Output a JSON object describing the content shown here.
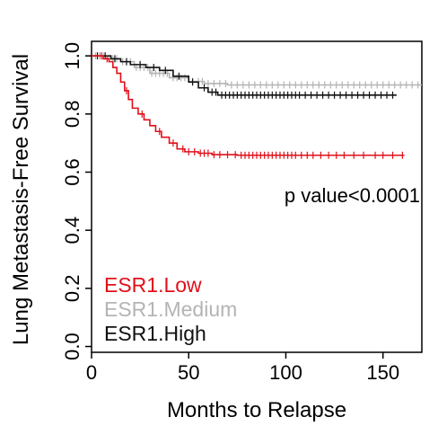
{
  "chart_data": {
    "type": "line",
    "subtype": "kaplan-meier",
    "xlabel": "Months to Relapse",
    "ylabel": "Lung Metastasis-Free Survival",
    "xlim": [
      0,
      170
    ],
    "ylim": [
      -0.02,
      1.05
    ],
    "xticks": [
      0,
      50,
      100,
      150
    ],
    "yticks": [
      0.0,
      0.2,
      0.4,
      0.6,
      0.8,
      1.0
    ],
    "xtick_labels": [
      "0",
      "50",
      "100",
      "150"
    ],
    "ytick_labels": [
      "0.0",
      "0.2",
      "0.4",
      "0.6",
      "0.8",
      "1.0"
    ],
    "grid": false,
    "annotation": "p value<0.0001",
    "legend_position": "bottom-left",
    "series": [
      {
        "name": "ESR1.Low",
        "color": "#e0101a",
        "steps": [
          [
            0,
            1.0
          ],
          [
            6,
            0.99
          ],
          [
            9,
            0.98
          ],
          [
            11,
            0.96
          ],
          [
            13,
            0.94
          ],
          [
            15,
            0.91
          ],
          [
            17,
            0.88
          ],
          [
            19,
            0.85
          ],
          [
            21,
            0.82
          ],
          [
            24,
            0.8
          ],
          [
            27,
            0.78
          ],
          [
            30,
            0.76
          ],
          [
            33,
            0.74
          ],
          [
            36,
            0.72
          ],
          [
            40,
            0.7
          ],
          [
            44,
            0.68
          ],
          [
            48,
            0.67
          ],
          [
            55,
            0.665
          ],
          [
            62,
            0.66
          ],
          [
            75,
            0.658
          ],
          [
            161,
            0.658
          ]
        ],
        "censor_x": [
          5,
          8,
          18,
          26,
          35,
          42,
          47,
          50,
          53,
          56,
          58,
          60,
          63,
          66,
          70,
          74,
          77,
          79,
          81,
          83,
          85,
          87,
          89,
          91,
          93,
          95,
          97,
          99,
          101,
          103,
          105,
          108,
          111,
          114,
          118,
          122,
          126,
          130,
          135,
          140,
          146,
          150,
          155,
          160
        ]
      },
      {
        "name": "ESR1.Medium",
        "color": "#b4b4b4",
        "steps": [
          [
            0,
            1.0
          ],
          [
            8,
            0.99
          ],
          [
            15,
            0.98
          ],
          [
            22,
            0.96
          ],
          [
            30,
            0.94
          ],
          [
            40,
            0.925
          ],
          [
            50,
            0.912
          ],
          [
            58,
            0.905
          ],
          [
            70,
            0.9
          ],
          [
            170,
            0.9
          ]
        ],
        "censor_x": [
          2,
          4,
          6,
          9,
          11,
          13,
          16,
          18,
          20,
          23,
          25,
          27,
          29,
          31,
          33,
          35,
          37,
          39,
          42,
          44,
          46,
          48,
          52,
          55,
          57,
          60,
          63,
          66,
          69,
          72,
          75,
          78,
          81,
          84,
          87,
          90,
          93,
          96,
          99,
          102,
          105,
          108,
          111,
          114,
          117,
          120,
          123,
          126,
          129,
          132,
          135,
          138,
          141,
          144,
          147,
          150,
          153,
          156,
          159,
          162,
          165,
          168
        ]
      },
      {
        "name": "ESR1.High",
        "color": "#111111",
        "steps": [
          [
            0,
            1.0
          ],
          [
            10,
            0.99
          ],
          [
            15,
            0.98
          ],
          [
            20,
            0.97
          ],
          [
            28,
            0.96
          ],
          [
            35,
            0.95
          ],
          [
            42,
            0.93
          ],
          [
            50,
            0.91
          ],
          [
            55,
            0.89
          ],
          [
            60,
            0.875
          ],
          [
            65,
            0.865
          ],
          [
            157,
            0.865
          ]
        ],
        "censor_x": [
          3,
          7,
          12,
          18,
          25,
          32,
          38,
          45,
          52,
          58,
          62,
          64,
          67,
          69,
          71,
          73,
          75,
          77,
          79,
          81,
          83,
          85,
          87,
          89,
          91,
          93,
          95,
          97,
          99,
          101,
          103,
          105,
          107,
          110,
          113,
          116,
          119,
          122,
          125,
          128,
          131,
          134,
          137,
          140,
          143,
          146,
          149,
          152,
          155
        ]
      }
    ]
  }
}
